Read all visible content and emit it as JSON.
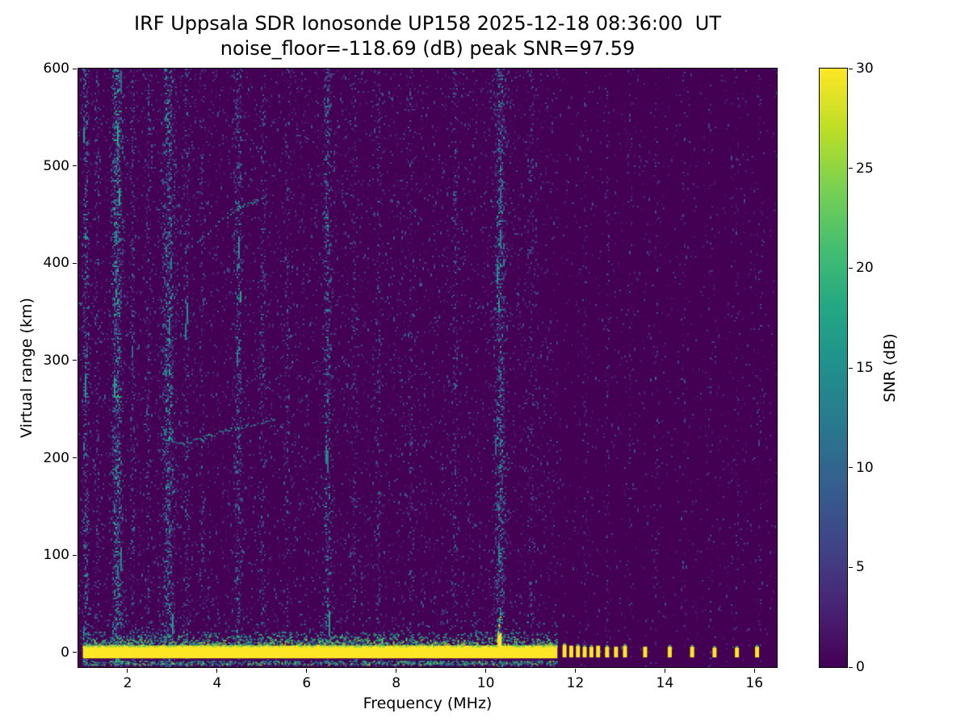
{
  "chart_data": {
    "type": "heatmap",
    "title": "IRF Uppsala SDR Ionosonde UP158 2025-12-18 08:36:00  UT",
    "subtitle": "noise_floor=-118.69 (dB) peak SNR=97.59",
    "station": "UP158",
    "datetime_ut": "2025-12-18 08:36:00",
    "noise_floor_db": -118.69,
    "peak_snr_db": 97.59,
    "xlabel": "Frequency (MHz)",
    "ylabel": "Virtual range (km)",
    "colorbar_label": "SNR (dB)",
    "colormap": "viridis",
    "background_color": "#440154",
    "peak_color": "#fde725",
    "xlim": [
      0.9,
      16.5
    ],
    "ylim": [
      -15,
      600
    ],
    "clim": [
      0,
      30
    ],
    "x_ticks": [
      2,
      4,
      6,
      8,
      10,
      12,
      14,
      16
    ],
    "y_ticks": [
      0,
      100,
      200,
      300,
      400,
      500,
      600
    ],
    "colorbar_ticks": [
      0,
      5,
      10,
      15,
      20,
      25,
      30
    ],
    "legend_position": "right-colorbar",
    "grid": false,
    "features": {
      "ground_band": {
        "f_start": 1.0,
        "f_end": 11.6,
        "km_bottom": -6,
        "km_top": 7,
        "fringe_km_top": 22,
        "snr_db": 30
      },
      "sub_band": {
        "f_start": 1.0,
        "f_end": 11.6,
        "km_bottom": -12,
        "km_top": -8
      },
      "tall_blob": {
        "f": 10.3,
        "km_top": 42
      },
      "spikes": [
        {
          "f": 11.75,
          "km_top": 8
        },
        {
          "f": 11.9,
          "km_top": 7
        },
        {
          "f": 12.05,
          "km_top": 7
        },
        {
          "f": 12.2,
          "km_top": 6
        },
        {
          "f": 12.35,
          "km_top": 6
        },
        {
          "f": 12.5,
          "km_top": 7
        },
        {
          "f": 12.7,
          "km_top": 6
        },
        {
          "f": 12.9,
          "km_top": 6
        },
        {
          "f": 13.1,
          "km_top": 7
        },
        {
          "f": 13.55,
          "km_top": 6
        },
        {
          "f": 14.1,
          "km_top": 6
        },
        {
          "f": 14.6,
          "km_top": 6
        },
        {
          "f": 15.1,
          "km_top": 5
        },
        {
          "f": 15.6,
          "km_top": 5
        },
        {
          "f": 16.05,
          "km_top": 6
        }
      ],
      "echo_traces": [
        {
          "name": "trace-upper",
          "points": [
            [
              3.55,
              422
            ],
            [
              4.0,
              442
            ],
            [
              4.5,
              458
            ],
            [
              5.05,
              468
            ]
          ]
        },
        {
          "name": "trace-lower",
          "points": [
            [
              2.75,
              233
            ],
            [
              2.95,
              219
            ],
            [
              3.25,
              215
            ],
            [
              3.7,
              222
            ],
            [
              4.3,
              230
            ],
            [
              5.3,
              241
            ]
          ]
        }
      ],
      "noisy_columns": [
        {
          "f": 1.05,
          "width": 0.06,
          "strength": 0.95
        },
        {
          "f": 1.3,
          "width": 0.05,
          "strength": 0.4
        },
        {
          "f": 1.75,
          "width": 0.1,
          "strength": 1.3
        },
        {
          "f": 2.1,
          "width": 0.05,
          "strength": 0.5
        },
        {
          "f": 2.45,
          "width": 0.05,
          "strength": 0.45
        },
        {
          "f": 2.9,
          "width": 0.12,
          "strength": 1.05
        },
        {
          "f": 3.3,
          "width": 0.06,
          "strength": 0.5
        },
        {
          "f": 3.65,
          "width": 0.05,
          "strength": 0.35
        },
        {
          "f": 4.45,
          "width": 0.08,
          "strength": 0.7
        },
        {
          "f": 5.0,
          "width": 0.06,
          "strength": 0.4
        },
        {
          "f": 5.55,
          "width": 0.05,
          "strength": 0.3
        },
        {
          "f": 6.45,
          "width": 0.07,
          "strength": 0.85
        },
        {
          "f": 7.05,
          "width": 0.05,
          "strength": 0.3
        },
        {
          "f": 7.6,
          "width": 0.05,
          "strength": 0.35
        },
        {
          "f": 8.3,
          "width": 0.05,
          "strength": 0.3
        },
        {
          "f": 9.3,
          "width": 0.06,
          "strength": 0.4
        },
        {
          "f": 10.3,
          "width": 0.1,
          "strength": 1.1
        },
        {
          "f": 11.0,
          "width": 0.05,
          "strength": 0.35
        },
        {
          "f": 12.2,
          "width": 0.04,
          "strength": 0.25
        },
        {
          "f": 12.7,
          "width": 0.04,
          "strength": 0.2
        },
        {
          "f": 13.2,
          "width": 0.04,
          "strength": 0.2
        },
        {
          "f": 13.8,
          "width": 0.04,
          "strength": 0.18
        },
        {
          "f": 14.4,
          "width": 0.04,
          "strength": 0.18
        },
        {
          "f": 15.0,
          "width": 0.04,
          "strength": 0.15
        },
        {
          "f": 15.6,
          "width": 0.04,
          "strength": 0.15
        },
        {
          "f": 16.1,
          "width": 0.04,
          "strength": 0.15
        }
      ]
    }
  }
}
